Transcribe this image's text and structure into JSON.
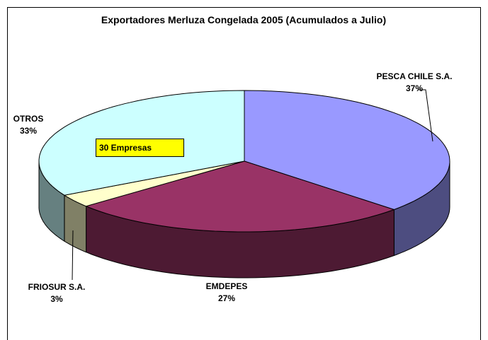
{
  "chart_data": {
    "type": "pie3d",
    "title": "Exportadores Merluza Congelada 2005 (Acumulados a Julio)",
    "categories": [
      "PESCA CHILE S.A.",
      "EMDEPES",
      "FRIOSUR S.A.",
      "OTROS"
    ],
    "values": [
      37,
      27,
      3,
      33
    ],
    "value_labels": [
      "37%",
      "27%",
      "3%",
      "33%"
    ],
    "colors": [
      "#9999ff",
      "#993366",
      "#ffffcc",
      "#ccffff"
    ],
    "annotation": "30 Empresas"
  }
}
